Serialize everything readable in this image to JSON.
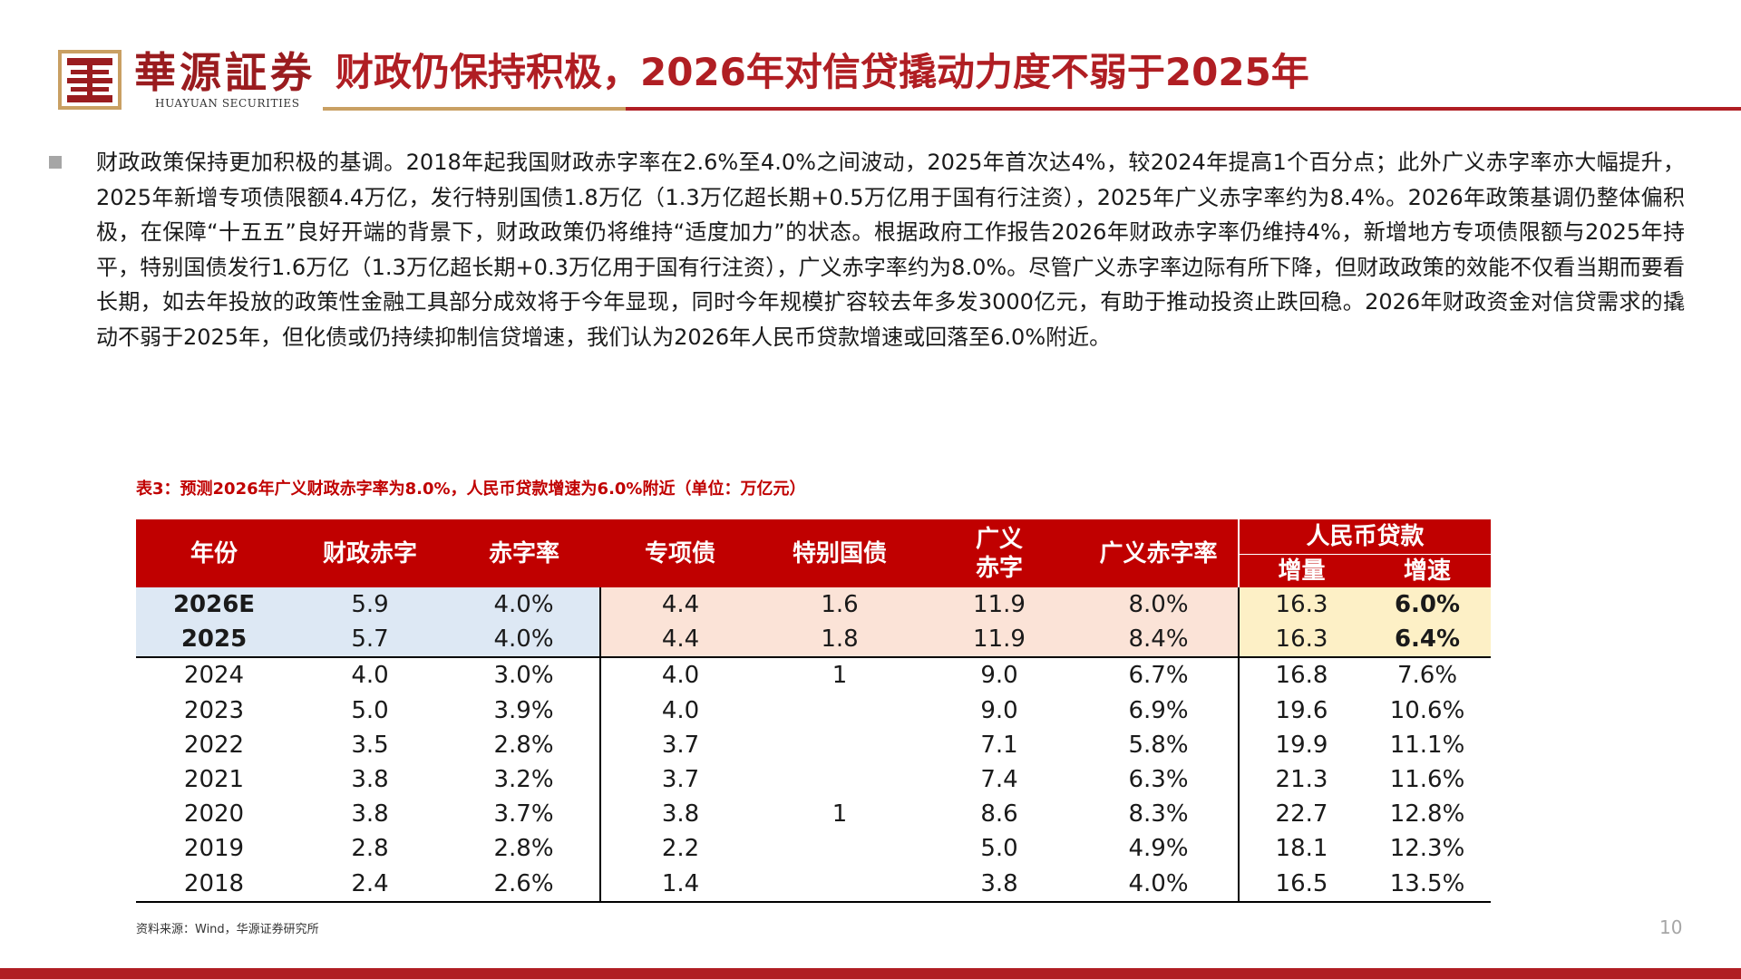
{
  "header": {
    "logo_cn": "華源証券",
    "logo_en": "HUAYUAN SECURITIES",
    "title": "财政仍保持积极，2026年对信贷撬动力度不弱于2025年"
  },
  "body_text": "财政政策保持更加积极的基调。2018年起我国财政赤字率在2.6%至4.0%之间波动，2025年首次达4%，较2024年提高1个百分点；此外广义赤字率亦大幅提升，2025年新增专项债限额4.4万亿，发行特别国债1.8万亿（1.3万亿超长期+0.5万亿用于国有行注资），2025年广义赤字率约为8.4%。2026年政策基调仍整体偏积极，在保障“十五五”良好开端的背景下，财政政策仍将维持“适度加力”的状态。根据政府工作报告2026年财政赤字率仍维持4%，新增地方专项债限额与2025年持平，特别国债发行1.6万亿（1.3万亿超长期+0.3万亿用于国有行注资），广义赤字率约为8.0%。尽管广义赤字率边际有所下降，但财政政策的效能不仅看当期而要看长期，如去年投放的政策性金融工具部分成效将于今年显现，同时今年规模扩容较去年多发3000亿元，有助于推动投资止跌回稳。2026年财政资金对信贷需求的撬动不弱于2025年，但化债或仍持续抑制信贷增速，我们认为2026年人民币贷款增速或回落至6.0%附近。",
  "table": {
    "caption": "表3：预测2026年广义财政赤字率为8.0%，人民币贷款增速为6.0%附近（单位：万亿元）",
    "headers": {
      "year": "年份",
      "deficit": "财政赤字",
      "deficit_rate": "赤字率",
      "special_bond": "专项债",
      "special_treasury": "特别国债",
      "broad_deficit_l1": "广义",
      "broad_deficit_l2": "赤字",
      "broad_deficit_rate": "广义赤字率",
      "loans_group": "人民币贷款",
      "loans_increment": "增量",
      "loans_growth": "增速"
    },
    "rows": [
      {
        "year": "2026E",
        "deficit": "5.9",
        "deficit_rate": "4.0%",
        "special_bond": "4.4",
        "special_treasury": "1.6",
        "broad_deficit": "11.9",
        "broad_deficit_rate": "8.0%",
        "loans_increment": "16.3",
        "loans_growth": "6.0%"
      },
      {
        "year": "2025",
        "deficit": "5.7",
        "deficit_rate": "4.0%",
        "special_bond": "4.4",
        "special_treasury": "1.8",
        "broad_deficit": "11.9",
        "broad_deficit_rate": "8.4%",
        "loans_increment": "16.3",
        "loans_growth": "6.4%"
      },
      {
        "year": "2024",
        "deficit": "4.0",
        "deficit_rate": "3.0%",
        "special_bond": "4.0",
        "special_treasury": "1",
        "broad_deficit": "9.0",
        "broad_deficit_rate": "6.7%",
        "loans_increment": "16.8",
        "loans_growth": "7.6%"
      },
      {
        "year": "2023",
        "deficit": "5.0",
        "deficit_rate": "3.9%",
        "special_bond": "4.0",
        "special_treasury": "",
        "broad_deficit": "9.0",
        "broad_deficit_rate": "6.9%",
        "loans_increment": "19.6",
        "loans_growth": "10.6%"
      },
      {
        "year": "2022",
        "deficit": "3.5",
        "deficit_rate": "2.8%",
        "special_bond": "3.7",
        "special_treasury": "",
        "broad_deficit": "7.1",
        "broad_deficit_rate": "5.8%",
        "loans_increment": "19.9",
        "loans_growth": "11.1%"
      },
      {
        "year": "2021",
        "deficit": "3.8",
        "deficit_rate": "3.2%",
        "special_bond": "3.7",
        "special_treasury": "",
        "broad_deficit": "7.4",
        "broad_deficit_rate": "6.3%",
        "loans_increment": "21.3",
        "loans_growth": "11.6%"
      },
      {
        "year": "2020",
        "deficit": "3.8",
        "deficit_rate": "3.7%",
        "special_bond": "3.8",
        "special_treasury": "1",
        "broad_deficit": "8.6",
        "broad_deficit_rate": "8.3%",
        "loans_increment": "22.7",
        "loans_growth": "12.8%"
      },
      {
        "year": "2019",
        "deficit": "2.8",
        "deficit_rate": "2.8%",
        "special_bond": "2.2",
        "special_treasury": "",
        "broad_deficit": "5.0",
        "broad_deficit_rate": "4.9%",
        "loans_increment": "18.1",
        "loans_growth": "12.3%"
      },
      {
        "year": "2018",
        "deficit": "2.4",
        "deficit_rate": "2.6%",
        "special_bond": "1.4",
        "special_treasury": "",
        "broad_deficit": "3.8",
        "broad_deficit_rate": "4.0%",
        "loans_increment": "16.5",
        "loans_growth": "13.5%"
      }
    ]
  },
  "source": "资料来源：Wind，华源证券研究所",
  "page_number": "10",
  "colors": {
    "brand_red": "#b01e23",
    "table_header_red": "#c00000",
    "gold": "#c9a063",
    "highlight_blue": "#dde8f4",
    "highlight_pink": "#fbe3d7",
    "highlight_yellow": "#fdf0c6"
  }
}
